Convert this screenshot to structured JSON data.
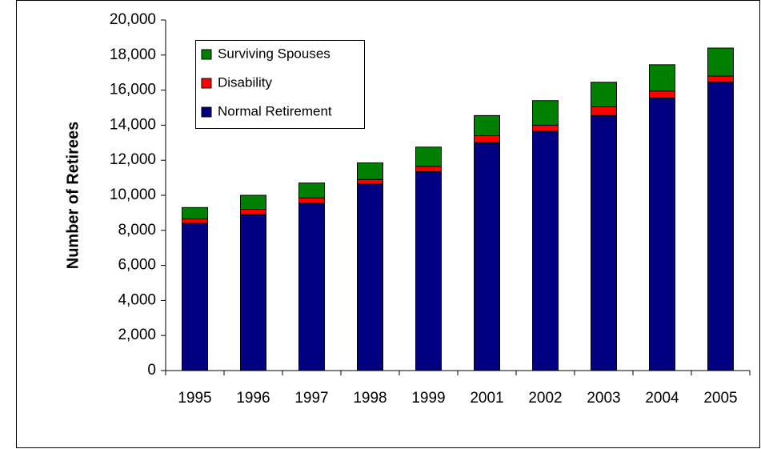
{
  "chart_data": {
    "type": "bar",
    "stacked": true,
    "ylabel": "Number of Retirees",
    "categories": [
      "1995",
      "1996",
      "1997",
      "1998",
      "1999",
      "2001",
      "2002",
      "2003",
      "2004",
      "2005"
    ],
    "series": [
      {
        "name": "Normal Retirement",
        "color": "#000080",
        "values": [
          8400,
          8900,
          9550,
          10650,
          11350,
          13000,
          13650,
          14550,
          15550,
          16450
        ]
      },
      {
        "name": "Disability",
        "color": "#ff0000",
        "values": [
          250,
          300,
          300,
          250,
          300,
          400,
          350,
          500,
          400,
          350
        ]
      },
      {
        "name": "Surviving Spouses",
        "color": "#008000",
        "values": [
          650,
          800,
          850,
          950,
          1100,
          1150,
          1400,
          1400,
          1500,
          1600
        ]
      }
    ],
    "ylim": [
      0,
      20000
    ],
    "yticks": [
      0,
      {
        "value": 2000,
        "label": "2,000"
      },
      {
        "value": 4000,
        "label": "4,000"
      },
      {
        "value": 6000,
        "label": "6,000"
      },
      {
        "value": 8000,
        "label": "8,000"
      },
      {
        "value": 10000,
        "label": "10,000"
      },
      {
        "value": 12000,
        "label": "12,000"
      },
      {
        "value": 14000,
        "label": "14,000"
      },
      {
        "value": 16000,
        "label": "16,000"
      },
      {
        "value": 18000,
        "label": "18,000"
      },
      {
        "value": 20000,
        "label": "20,000"
      }
    ]
  }
}
